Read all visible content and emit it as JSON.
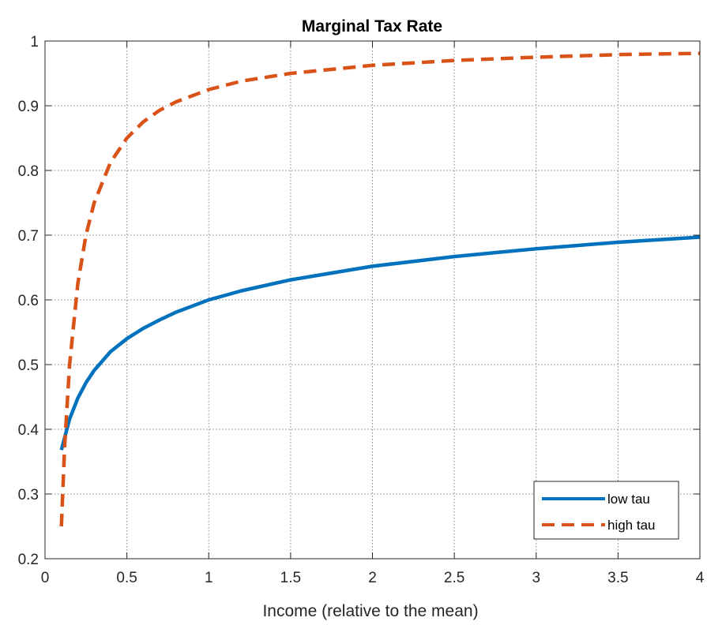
{
  "chart_data": {
    "type": "line",
    "title": "Marginal Tax Rate",
    "xlabel": "Income (relative to the mean)",
    "ylabel": "",
    "xlim": [
      0,
      4
    ],
    "ylim": [
      0.2,
      1
    ],
    "xticks": [
      0,
      0.5,
      1,
      1.5,
      2,
      2.5,
      3,
      3.5,
      4
    ],
    "xtick_labels": [
      "0",
      "0.5",
      "1",
      "1.5",
      "2",
      "2.5",
      "3",
      "3.5",
      "4"
    ],
    "yticks": [
      0.2,
      0.3,
      0.4,
      0.5,
      0.6,
      0.7,
      0.8,
      0.9,
      1
    ],
    "ytick_labels": [
      "0.2",
      "0.3",
      "0.4",
      "0.5",
      "0.6",
      "0.7",
      "0.8",
      "0.9",
      "1"
    ],
    "grid": true,
    "legend_position": "bottom-right",
    "series": [
      {
        "name": "low tau",
        "color": "#0072BD",
        "style": "solid",
        "x": [
          0.1,
          0.15,
          0.2,
          0.25,
          0.3,
          0.4,
          0.5,
          0.6,
          0.7,
          0.8,
          1.0,
          1.2,
          1.5,
          2.0,
          2.5,
          3.0,
          3.5,
          4.0
        ],
        "y": [
          0.368,
          0.416,
          0.448,
          0.472,
          0.491,
          0.52,
          0.54,
          0.556,
          0.569,
          0.581,
          0.6,
          0.614,
          0.631,
          0.652,
          0.667,
          0.679,
          0.689,
          0.697
        ]
      },
      {
        "name": "high tau",
        "color": "#D95319",
        "style": "dashed",
        "x": [
          0.1,
          0.12,
          0.15,
          0.2,
          0.25,
          0.3,
          0.4,
          0.5,
          0.6,
          0.7,
          0.8,
          1.0,
          1.2,
          1.5,
          2.0,
          2.5,
          3.0,
          3.5,
          4.0
        ],
        "y": [
          0.25,
          0.375,
          0.5,
          0.625,
          0.7,
          0.75,
          0.8125,
          0.85,
          0.875,
          0.893,
          0.906,
          0.925,
          0.938,
          0.95,
          0.9625,
          0.97,
          0.975,
          0.979,
          0.981
        ]
      }
    ]
  }
}
